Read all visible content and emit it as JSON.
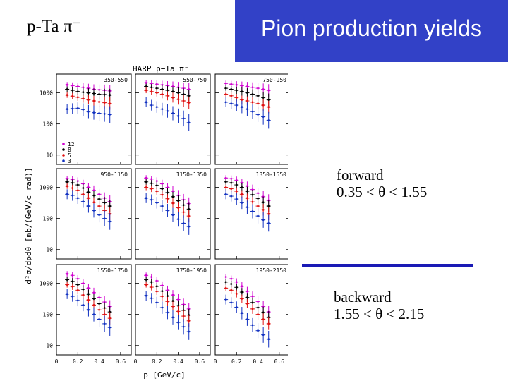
{
  "slide": {
    "title": "p-Ta  π⁻",
    "banner": "Pion production yields",
    "forward_label": "forward",
    "forward_range": "0.35 <  θ < 1.55",
    "backward_label": "backward",
    "backward_range": "1.55 <  θ < 2.15"
  },
  "colors": {
    "banner": "#3241c7",
    "divider": "#1a1ab5"
  },
  "chart_data": {
    "type": "scatter",
    "title": "HARP  p−Ta  π⁻",
    "xlabel": "p  [GeV/c]",
    "ylabel": "d²σ/dpdθ  [mb/(GeV/c rad)]",
    "x_ticks": [
      "0",
      "0.2",
      "0.4",
      "0.6"
    ],
    "y_ticks": [
      "1000",
      "100",
      "10"
    ],
    "xlim": [
      0,
      0.7
    ],
    "ylim": [
      5,
      4000
    ],
    "yscale": "log",
    "legend": {
      "placement": "bottom-left of first panel",
      "entries": [
        {
          "label": "12",
          "color": "#d000d0",
          "marker": "star"
        },
        {
          "label": "8",
          "color": "#000000",
          "marker": "circle"
        },
        {
          "label": "5",
          "color": "#e01010",
          "marker": "cross"
        },
        {
          "label": "3",
          "color": "#1030c0",
          "marker": "triangle"
        }
      ]
    },
    "panels": [
      {
        "label": "350-550",
        "x": [
          0.1,
          0.15,
          0.2,
          0.25,
          0.3,
          0.35,
          0.4,
          0.45,
          0.5
        ],
        "series": [
          {
            "name": "12",
            "values": [
              1800,
              1700,
              1600,
              1500,
              1400,
              1300,
              1250,
              1200,
              1150
            ]
          },
          {
            "name": "8",
            "values": [
              1300,
              1200,
              1100,
              1050,
              1000,
              950,
              900,
              880,
              850
            ]
          },
          {
            "name": "5",
            "values": [
              850,
              780,
              720,
              650,
              600,
              550,
              510,
              480,
              450
            ]
          },
          {
            "name": "3",
            "values": [
              300,
              310,
              320,
              290,
              250,
              230,
              220,
              210,
              200
            ]
          }
        ]
      },
      {
        "label": "550-750",
        "x": [
          0.1,
          0.15,
          0.2,
          0.25,
          0.3,
          0.35,
          0.4,
          0.45,
          0.5
        ],
        "series": [
          {
            "name": "12",
            "values": [
              2100,
              2000,
              1900,
              1800,
              1700,
              1600,
              1500,
              1400,
              1300
            ]
          },
          {
            "name": "8",
            "values": [
              1600,
              1500,
              1400,
              1300,
              1200,
              1100,
              1000,
              900,
              800
            ]
          },
          {
            "name": "5",
            "values": [
              1200,
              1100,
              1000,
              900,
              800,
              700,
              620,
              550,
              480
            ]
          },
          {
            "name": "3",
            "values": [
              500,
              400,
              350,
              300,
              260,
              220,
              180,
              150,
              110
            ]
          }
        ]
      },
      {
        "label": "750-950",
        "x": [
          0.1,
          0.15,
          0.2,
          0.25,
          0.3,
          0.35,
          0.4,
          0.45,
          0.5
        ],
        "series": [
          {
            "name": "12",
            "values": [
              2000,
              1900,
              1800,
              1700,
              1600,
              1500,
              1400,
              1300,
              1200
            ]
          },
          {
            "name": "8",
            "values": [
              1400,
              1300,
              1200,
              1100,
              1000,
              900,
              800,
              700,
              600
            ]
          },
          {
            "name": "5",
            "values": [
              900,
              800,
              700,
              600,
              550,
              500,
              450,
              400,
              350
            ]
          },
          {
            "name": "3",
            "values": [
              500,
              450,
              400,
              350,
              300,
              250,
              200,
              170,
              130
            ]
          }
        ]
      },
      {
        "label": "950-1150",
        "x": [
          0.1,
          0.15,
          0.2,
          0.25,
          0.3,
          0.35,
          0.4,
          0.45,
          0.5
        ],
        "series": [
          {
            "name": "12",
            "values": [
              1900,
              1800,
              1600,
              1300,
              1000,
              800,
              600,
              450,
              350
            ]
          },
          {
            "name": "8",
            "values": [
              1500,
              1400,
              1200,
              950,
              700,
              550,
              420,
              320,
              250
            ]
          },
          {
            "name": "5",
            "values": [
              1100,
              950,
              800,
              600,
              450,
              330,
              250,
              180,
              140
            ]
          },
          {
            "name": "3",
            "values": [
              600,
              550,
              450,
              350,
              250,
              180,
              130,
              100,
              80
            ]
          }
        ]
      },
      {
        "label": "1150-1350",
        "x": [
          0.1,
          0.15,
          0.2,
          0.25,
          0.3,
          0.35,
          0.4,
          0.45,
          0.5
        ],
        "series": [
          {
            "name": "12",
            "values": [
              2000,
              1850,
              1600,
              1300,
              1000,
              750,
              550,
              400,
              300
            ]
          },
          {
            "name": "8",
            "values": [
              1500,
              1350,
              1150,
              900,
              680,
              500,
              370,
              270,
              200
            ]
          },
          {
            "name": "5",
            "values": [
              1000,
              900,
              750,
              580,
              430,
              310,
              220,
              160,
              120
            ]
          },
          {
            "name": "3",
            "values": [
              450,
              400,
              320,
              250,
              180,
              130,
              95,
              70,
              55
            ]
          }
        ]
      },
      {
        "label": "1350-1550",
        "x": [
          0.1,
          0.15,
          0.2,
          0.25,
          0.3,
          0.35,
          0.4,
          0.45,
          0.5
        ],
        "series": [
          {
            "name": "12",
            "values": [
              2000,
              1900,
              1700,
              1400,
              1100,
              850,
              650,
              500,
              380
            ]
          },
          {
            "name": "8",
            "values": [
              1500,
              1400,
              1200,
              1000,
              750,
              580,
              440,
              330,
              250
            ]
          },
          {
            "name": "5",
            "values": [
              1000,
              900,
              750,
              600,
              450,
              340,
              250,
              190,
              140
            ]
          },
          {
            "name": "3",
            "values": [
              600,
              520,
              420,
              320,
              230,
              170,
              120,
              90,
              70
            ]
          }
        ]
      },
      {
        "label": "1550-1750",
        "x": [
          0.1,
          0.15,
          0.2,
          0.25,
          0.3,
          0.35,
          0.4,
          0.45,
          0.5
        ],
        "series": [
          {
            "name": "12",
            "values": [
              2000,
              1800,
              1400,
              1000,
              700,
              500,
              350,
              250,
              180
            ]
          },
          {
            "name": "8",
            "values": [
              1300,
              1150,
              900,
              640,
              450,
              320,
              220,
              160,
              120
            ]
          },
          {
            "name": "5",
            "values": [
              900,
              780,
              600,
              420,
              290,
              200,
              140,
              100,
              75
            ]
          },
          {
            "name": "3",
            "values": [
              450,
              380,
              280,
              200,
              140,
              100,
              70,
              50,
              38
            ]
          }
        ]
      },
      {
        "label": "1750-1950",
        "x": [
          0.1,
          0.15,
          0.2,
          0.25,
          0.3,
          0.35,
          0.4,
          0.45,
          0.5
        ],
        "series": [
          {
            "name": "12",
            "values": [
              1800,
              1600,
              1200,
              850,
              600,
              420,
              300,
              210,
              150
            ]
          },
          {
            "name": "8",
            "values": [
              1300,
              1100,
              800,
              560,
              390,
              270,
              190,
              135,
              95
            ]
          },
          {
            "name": "5",
            "values": [
              900,
              750,
              550,
              380,
              260,
              180,
              125,
              88,
              62
            ]
          },
          {
            "name": "3",
            "values": [
              400,
              330,
              240,
              165,
              115,
              80,
              55,
              40,
              28
            ]
          }
        ]
      },
      {
        "label": "1950-2150",
        "x": [
          0.1,
          0.15,
          0.2,
          0.25,
          0.3,
          0.35,
          0.4,
          0.45,
          0.5
        ],
        "series": [
          {
            "name": "12",
            "values": [
              1600,
              1400,
              1100,
              800,
              550,
              380,
              260,
              180,
              120
            ]
          },
          {
            "name": "8",
            "values": [
              1100,
              950,
              740,
              520,
              350,
              240,
              165,
              115,
              80
            ]
          },
          {
            "name": "5",
            "values": [
              700,
              600,
              460,
              320,
              220,
              150,
              100,
              70,
              50
            ]
          },
          {
            "name": "3",
            "values": [
              300,
              240,
              170,
              110,
              70,
              45,
              30,
              22,
              16
            ]
          }
        ]
      }
    ]
  }
}
